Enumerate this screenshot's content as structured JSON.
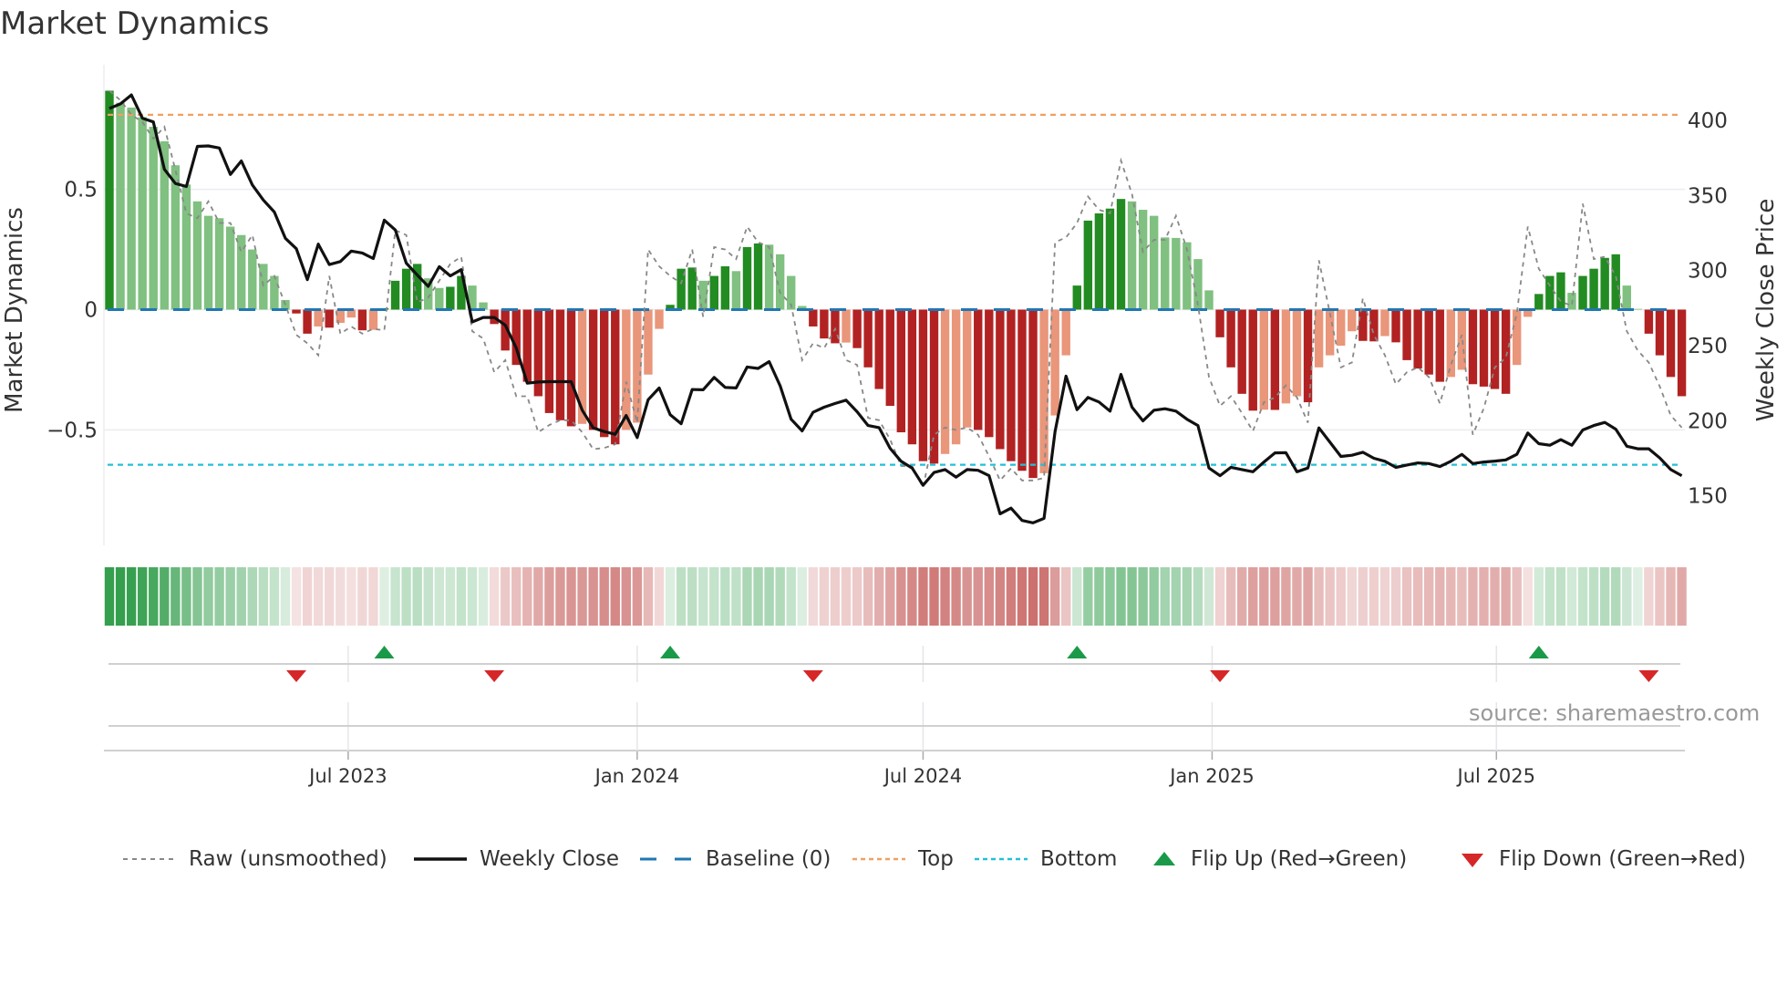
{
  "title": "Market Dynamics",
  "source": "source: sharemaestro.com",
  "colors": {
    "up_strong": "#228b22",
    "up_weak": "#80c080",
    "down_strong": "#b22222",
    "down_weak": "#e9967a",
    "strip_green": "#2a9a45",
    "strip_red": "#c0504d",
    "close": "#111111",
    "raw": "#888888",
    "baseline": "#1f77b4",
    "top": "#f0a060",
    "bottom": "#22c0d8",
    "flip_up": "#1a9a48",
    "flip_down": "#d62728"
  },
  "legend": [
    {
      "key": "raw",
      "label": "Raw (unsmoothed)"
    },
    {
      "key": "close",
      "label": "Weekly Close"
    },
    {
      "key": "baseline",
      "label": "Baseline (0)"
    },
    {
      "key": "top",
      "label": "Top"
    },
    {
      "key": "bottom",
      "label": "Bottom"
    },
    {
      "key": "flip_up",
      "label": "Flip Up (Red→Green)"
    },
    {
      "key": "flip_down",
      "label": "Flip Down (Green→Red)"
    }
  ],
  "chart_data": {
    "type": "bar",
    "title": "Market Dynamics",
    "ylabel": "Market Dynamics",
    "y2label": "Weekly Close Price",
    "ylim": [
      -0.98,
      0.98
    ],
    "y2lim": [
      117,
      431
    ],
    "yticks": [
      {
        "value": 0.5,
        "label": "0.5"
      },
      {
        "value": 0,
        "label": "0"
      },
      {
        "value": -0.5,
        "label": "−0.5"
      }
    ],
    "y2ticks": [
      {
        "value": 400,
        "label": "400"
      },
      {
        "value": 350,
        "label": "350"
      },
      {
        "value": 300,
        "label": "300"
      },
      {
        "value": 250,
        "label": "250"
      },
      {
        "value": 200,
        "label": "200"
      },
      {
        "value": 150,
        "label": "150"
      }
    ],
    "xticks": [
      {
        "date": "2023-07-01",
        "label": "Jul 2023"
      },
      {
        "date": "2024-01-01",
        "label": "Jan 2024"
      },
      {
        "date": "2024-07-01",
        "label": "Jul 2024"
      },
      {
        "date": "2025-01-01",
        "label": "Jan 2025"
      },
      {
        "date": "2025-07-01",
        "label": "Jul 2025"
      }
    ],
    "start_date": "2023-01-30",
    "interval_days": 7,
    "baseline": 0,
    "top": 0.81,
    "bottom": -0.645,
    "grid": true,
    "legend_position": "bottom",
    "values": [
      0.91,
      0.86,
      0.84,
      0.8,
      0.76,
      0.7,
      0.6,
      0.52,
      0.45,
      0.39,
      0.38,
      0.345,
      0.31,
      0.25,
      0.19,
      0.14,
      0.04,
      -0.016,
      -0.1,
      -0.07,
      -0.075,
      -0.055,
      -0.033,
      -0.086,
      -0.084,
      0.006,
      0.12,
      0.17,
      0.19,
      0.13,
      0.09,
      0.095,
      0.14,
      0.1,
      0.03,
      -0.06,
      -0.17,
      -0.23,
      -0.3,
      -0.36,
      -0.43,
      -0.46,
      -0.485,
      -0.475,
      -0.5,
      -0.53,
      -0.56,
      -0.5,
      -0.47,
      -0.27,
      -0.08,
      0.02,
      0.17,
      0.175,
      0.12,
      0.14,
      0.18,
      0.16,
      0.26,
      0.275,
      0.27,
      0.23,
      0.14,
      0.015,
      -0.07,
      -0.12,
      -0.14,
      -0.137,
      -0.16,
      -0.24,
      -0.33,
      -0.4,
      -0.51,
      -0.56,
      -0.63,
      -0.64,
      -0.6,
      -0.56,
      -0.49,
      -0.5,
      -0.53,
      -0.58,
      -0.63,
      -0.67,
      -0.7,
      -0.68,
      -0.44,
      -0.19,
      0.1,
      0.37,
      0.4,
      0.42,
      0.46,
      0.45,
      0.415,
      0.39,
      0.3,
      0.298,
      0.28,
      0.21,
      0.08,
      -0.115,
      -0.24,
      -0.35,
      -0.42,
      -0.416,
      -0.417,
      -0.39,
      -0.36,
      -0.385,
      -0.24,
      -0.19,
      -0.15,
      -0.09,
      -0.13,
      -0.132,
      -0.11,
      -0.136,
      -0.21,
      -0.245,
      -0.27,
      -0.3,
      -0.28,
      -0.25,
      -0.31,
      -0.32,
      -0.33,
      -0.35,
      -0.23,
      -0.03,
      0.065,
      0.14,
      0.155,
      0.07,
      0.14,
      0.17,
      0.215,
      0.23,
      0.1,
      0.003,
      -0.1,
      -0.19,
      -0.28,
      -0.36
    ],
    "raw": [
      0.91,
      0.87,
      0.81,
      0.78,
      0.71,
      0.76,
      0.58,
      0.4,
      0.38,
      0.45,
      0.36,
      0.36,
      0.24,
      0.31,
      0.1,
      0.14,
      0.02,
      -0.105,
      -0.14,
      -0.19,
      0.14,
      -0.1,
      -0.07,
      -0.1,
      -0.08,
      -0.086,
      0.33,
      0.31,
      0.03,
      0.05,
      0.12,
      0.19,
      0.22,
      -0.09,
      -0.12,
      -0.26,
      -0.21,
      -0.36,
      -0.36,
      -0.51,
      -0.48,
      -0.46,
      -0.46,
      -0.51,
      -0.58,
      -0.575,
      -0.56,
      -0.3,
      -0.47,
      0.25,
      0.18,
      0.14,
      0.11,
      0.25,
      -0.03,
      0.26,
      0.25,
      0.21,
      0.345,
      0.28,
      0.26,
      0.07,
      0.02,
      -0.21,
      -0.14,
      -0.16,
      -0.08,
      -0.21,
      -0.23,
      -0.45,
      -0.46,
      -0.54,
      -0.65,
      -0.65,
      -0.74,
      -0.52,
      -0.49,
      -0.5,
      -0.49,
      -0.52,
      -0.61,
      -0.71,
      -0.66,
      -0.71,
      -0.71,
      -0.7,
      0.28,
      0.3,
      0.36,
      0.47,
      0.415,
      0.4,
      0.62,
      0.48,
      0.24,
      0.29,
      0.29,
      0.39,
      0.25,
      0.02,
      -0.28,
      -0.4,
      -0.36,
      -0.43,
      -0.505,
      -0.385,
      -0.365,
      -0.315,
      -0.365,
      -0.47,
      0.205,
      -0.016,
      -0.24,
      -0.22,
      0.047,
      -0.105,
      -0.19,
      -0.31,
      -0.26,
      -0.24,
      -0.28,
      -0.39,
      -0.23,
      -0.105,
      -0.52,
      -0.41,
      -0.24,
      -0.2,
      -0.016,
      0.345,
      0.17,
      0.1,
      0.034,
      0.015,
      0.44,
      0.21,
      0.22,
      0.14,
      -0.09,
      -0.17,
      -0.22,
      -0.32,
      -0.44,
      -0.49
    ],
    "close": [
      408,
      411,
      417,
      401.5,
      399,
      367.5,
      358,
      356,
      382.7,
      383,
      381.6,
      364,
      373,
      357,
      347,
      339,
      321.5,
      314.6,
      294,
      317.6,
      304,
      306,
      313,
      311.7,
      308,
      333.6,
      327,
      305,
      297,
      289.5,
      302.6,
      296.5,
      300.6,
      265.8,
      268.8,
      268.8,
      263.6,
      248.5,
      225,
      225.8,
      226,
      226,
      226,
      207,
      195.3,
      192.8,
      191,
      203.5,
      188.8,
      214,
      221.8,
      204,
      198,
      220.8,
      220.6,
      228.9,
      222.2,
      221.8,
      235.8,
      234.8,
      239.4,
      223.2,
      201,
      193.2,
      205.6,
      209,
      211.5,
      213.7,
      206,
      196.8,
      195.4,
      181.6,
      173,
      168.5,
      157,
      165.5,
      167.5,
      162.4,
      167.5,
      167,
      163.4,
      138,
      141.8,
      133.6,
      132,
      135,
      192.8,
      229.7,
      207.4,
      215.5,
      212.5,
      206.4,
      230.9,
      209,
      199.9,
      207,
      208,
      206.4,
      201,
      196.8,
      168.5,
      163.4,
      169,
      167.5,
      166,
      172.5,
      178.6,
      178.7,
      166,
      168.5,
      195.2,
      185.7,
      176.2,
      177,
      179,
      175,
      173,
      168.9,
      170.5,
      171.9,
      171.5,
      169.5,
      173,
      177.6,
      171.5,
      172.5,
      173.1,
      173.9,
      177.6,
      191.8,
      184.7,
      183.7,
      187.4,
      183.7,
      193.8,
      196.8,
      198.9,
      194.4,
      183,
      181.3,
      181.3,
      175.2,
      167.5,
      163.4
    ],
    "flips_up": [
      "2023-07-24",
      "2024-01-22",
      "2024-10-07",
      "2025-07-28"
    ],
    "flips_down": [
      "2023-05-29",
      "2023-10-02",
      "2024-04-22",
      "2025-01-06",
      "2025-10-06"
    ]
  }
}
